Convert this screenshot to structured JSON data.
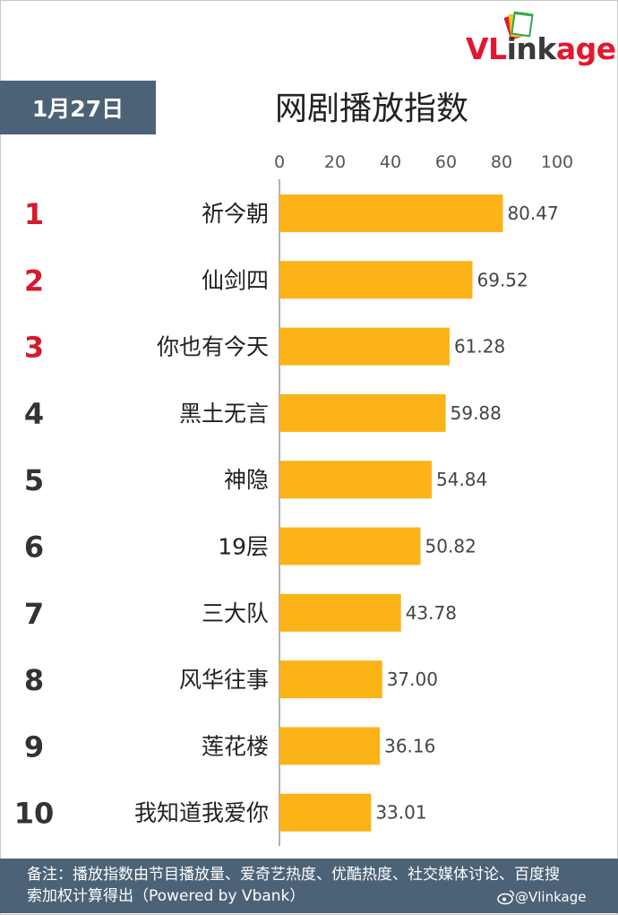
{
  "brand": {
    "name": "VLinkage",
    "part1": "VL",
    "part2": "ink",
    "part3": "age",
    "colors": {
      "red": "#e3172f",
      "dark": "#3a3a3a"
    }
  },
  "header": {
    "date": "1月27日",
    "title": "网剧播放指数",
    "date_bg": "#4c6277"
  },
  "chart_data": {
    "type": "bar",
    "orientation": "horizontal",
    "title": "网剧播放指数",
    "xlim": [
      0,
      100
    ],
    "ticks": [
      "0",
      "20",
      "40",
      "60",
      "80",
      "100"
    ],
    "tick_values": [
      0,
      20,
      40,
      60,
      80,
      100
    ],
    "ranks": [
      "1",
      "2",
      "3",
      "4",
      "5",
      "6",
      "7",
      "8",
      "9",
      "10"
    ],
    "categories": [
      "祈今朝",
      "仙剑四",
      "你也有今天",
      "黑土无言",
      "神隐",
      "19层",
      "三大队",
      "风华往事",
      "莲花楼",
      "我知道我爱你"
    ],
    "values": [
      80.47,
      69.52,
      61.28,
      59.88,
      54.84,
      50.82,
      43.78,
      37.0,
      36.16,
      33.01
    ],
    "value_labels": [
      "80.47",
      "69.52",
      "61.28",
      "59.88",
      "54.84",
      "50.82",
      "43.78",
      "37.00",
      "36.16",
      "33.01"
    ],
    "bar_color": "#fbb318",
    "top_rank_color": "#d8182d",
    "rank_color": "#333333",
    "grid": false
  },
  "footer": {
    "note": "备注：播放指数由节目播放量、爱奇艺热度、优酷热度、社交媒体讨论、百度搜索加权计算得出（Powered by Vbank）",
    "watermark": "@Vlinkage",
    "bg": "#4c6277"
  }
}
